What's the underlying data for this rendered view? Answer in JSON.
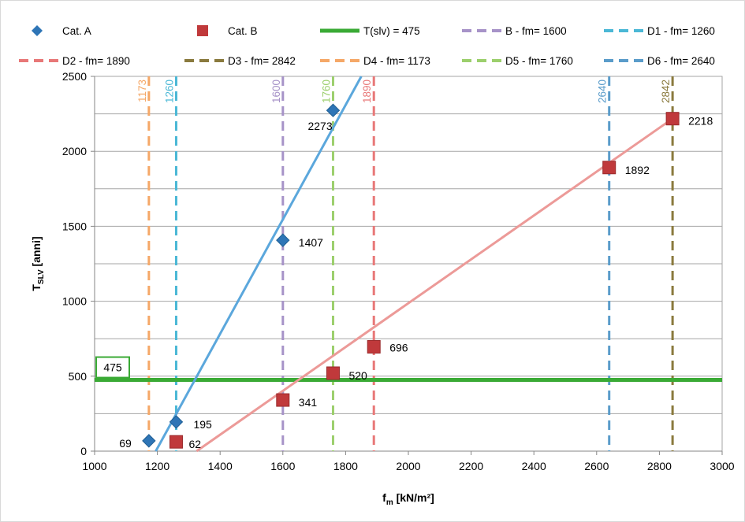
{
  "chart_data": {
    "type": "scatter",
    "xlabel": "f",
    "xlabel_sub": "m",
    "xlabel_unit": "[kN/m²]",
    "ylabel": "T",
    "ylabel_sub": "SLV",
    "ylabel_unit": "[anni]",
    "xlim": [
      1000,
      3000
    ],
    "ylim": [
      0,
      2500
    ],
    "xticks": [
      "1000",
      "1200",
      "1400",
      "1600",
      "1800",
      "2000",
      "2200",
      "2400",
      "2600",
      "2800",
      "3000"
    ],
    "yticks": [
      "0",
      "500",
      "1000",
      "1500",
      "2000",
      "2500"
    ],
    "grid": "horizontal",
    "legend_position": "top",
    "series": [
      {
        "name": "Cat. A",
        "marker": "diamond",
        "color": "#2e75b6",
        "points": [
          {
            "x": 1173,
            "y": 69,
            "label": "69"
          },
          {
            "x": 1260,
            "y": 195,
            "label": "195"
          },
          {
            "x": 1600,
            "y": 1407,
            "label": "1407"
          },
          {
            "x": 1760,
            "y": 2273,
            "label": "2273"
          }
        ]
      },
      {
        "name": "Cat. B",
        "marker": "square",
        "color": "#c0393b",
        "points": [
          {
            "x": 1260,
            "y": 62,
            "label": "62"
          },
          {
            "x": 1600,
            "y": 341,
            "label": "341"
          },
          {
            "x": 1760,
            "y": 520,
            "label": "520"
          },
          {
            "x": 1890,
            "y": 696,
            "label": "696"
          },
          {
            "x": 2640,
            "y": 1892,
            "label": "1892"
          },
          {
            "x": 2842,
            "y": 2218,
            "label": "2218"
          }
        ]
      }
    ],
    "trendlines": [
      {
        "color": "#5ba7dc",
        "from": [
          1195,
          0
        ],
        "to": [
          1850,
          2500
        ]
      },
      {
        "color": "#ec9a98",
        "from": [
          1325,
          0
        ],
        "to": [
          2842,
          2218
        ]
      }
    ],
    "threshold": {
      "name": "T(slv) = 475",
      "value": 475,
      "label": "475",
      "color": "#3aaa35"
    },
    "vertical_lines": [
      {
        "name": "B - fm= 1600",
        "x": 1600,
        "label": "1600",
        "color": "#a793c8"
      },
      {
        "name": "D1 - fm= 1260",
        "x": 1260,
        "label": "1260",
        "color": "#4bb8d6"
      },
      {
        "name": "D2 - fm= 1890",
        "x": 1890,
        "label": "1890",
        "color": "#e87878"
      },
      {
        "name": "D3 - fm= 2842",
        "x": 2842,
        "label": "2842",
        "color": "#8a7a3e"
      },
      {
        "name": "D4 - fm= 1173",
        "x": 1173,
        "label": "1173",
        "color": "#f5a868"
      },
      {
        "name": "D5 - fm= 1760",
        "x": 1760,
        "label": "1760",
        "color": "#9ccf6d"
      },
      {
        "name": "D6 - fm= 2640",
        "x": 2640,
        "label": "2640",
        "color": "#5a9cca"
      }
    ]
  }
}
